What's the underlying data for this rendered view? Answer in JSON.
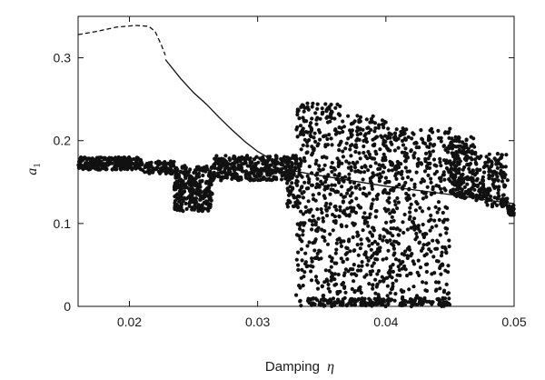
{
  "chart_data": {
    "type": "scatter",
    "xlabel": "Damping",
    "xlabel_symbol": "η",
    "ylabel_symbol": "a",
    "ylabel_subscript": "1",
    "xlim": [
      0.016,
      0.05
    ],
    "ylim": [
      0,
      0.35
    ],
    "xticks": [
      0.02,
      0.03,
      0.04,
      0.05
    ],
    "xtick_labels": [
      "0.02",
      "0.03",
      "0.04",
      "0.05"
    ],
    "yticks": [
      0,
      0.1,
      0.2,
      0.3
    ],
    "ytick_labels": [
      "0",
      "0.1",
      "0.2",
      "0.3"
    ],
    "grid": false,
    "colors": {
      "ink": "#111111"
    },
    "series": [
      {
        "style": "dashed-line",
        "points": [
          [
            0.016,
            0.328
          ],
          [
            0.0175,
            0.332
          ],
          [
            0.019,
            0.337
          ],
          [
            0.0205,
            0.339
          ],
          [
            0.0215,
            0.338
          ],
          [
            0.022,
            0.332
          ],
          [
            0.0225,
            0.315
          ],
          [
            0.0228,
            0.303
          ]
        ]
      },
      {
        "style": "solid-line",
        "points": [
          [
            0.0228,
            0.298
          ],
          [
            0.024,
            0.275
          ],
          [
            0.025,
            0.258
          ],
          [
            0.026,
            0.244
          ],
          [
            0.027,
            0.228
          ],
          [
            0.028,
            0.213
          ],
          [
            0.029,
            0.199
          ],
          [
            0.03,
            0.187
          ],
          [
            0.031,
            0.178
          ],
          [
            0.032,
            0.17
          ],
          [
            0.033,
            0.163
          ],
          [
            0.034,
            0.16
          ],
          [
            0.036,
            0.155
          ],
          [
            0.038,
            0.15
          ],
          [
            0.04,
            0.145
          ],
          [
            0.042,
            0.141
          ],
          [
            0.044,
            0.137
          ],
          [
            0.046,
            0.133
          ],
          [
            0.048,
            0.128
          ],
          [
            0.05,
            0.124
          ]
        ]
      },
      {
        "style": "dots",
        "bands": [
          {
            "x": [
              0.016,
              0.021
            ],
            "y": [
              0.165,
              0.18
            ],
            "n": 260
          },
          {
            "x": [
              0.021,
              0.0235
            ],
            "y": [
              0.16,
              0.175
            ],
            "n": 90
          },
          {
            "x": [
              0.0235,
              0.0265
            ],
            "y": [
              0.115,
              0.17
            ],
            "n": 320
          },
          {
            "x": [
              0.0265,
              0.0325
            ],
            "y": [
              0.152,
              0.182
            ],
            "n": 330
          },
          {
            "x": [
              0.0323,
              0.0332
            ],
            "y": [
              0.12,
              0.182
            ],
            "n": 80
          },
          {
            "x": [
              0.033,
              0.0365
            ],
            "y": [
              0.0,
              0.245
            ],
            "n": 420
          },
          {
            "x": [
              0.0365,
              0.04
            ],
            "y": [
              0.0,
              0.23
            ],
            "n": 420
          },
          {
            "x": [
              0.04,
              0.045
            ],
            "y": [
              0.0,
              0.215
            ],
            "n": 520
          },
          {
            "x": [
              0.045,
              0.047
            ],
            "y": [
              0.13,
              0.205
            ],
            "n": 200
          },
          {
            "x": [
              0.047,
              0.0495
            ],
            "y": [
              0.12,
              0.185
            ],
            "n": 160
          },
          {
            "x": [
              0.0495,
              0.05
            ],
            "y": [
              0.11,
              0.122
            ],
            "n": 30
          }
        ]
      }
    ]
  }
}
